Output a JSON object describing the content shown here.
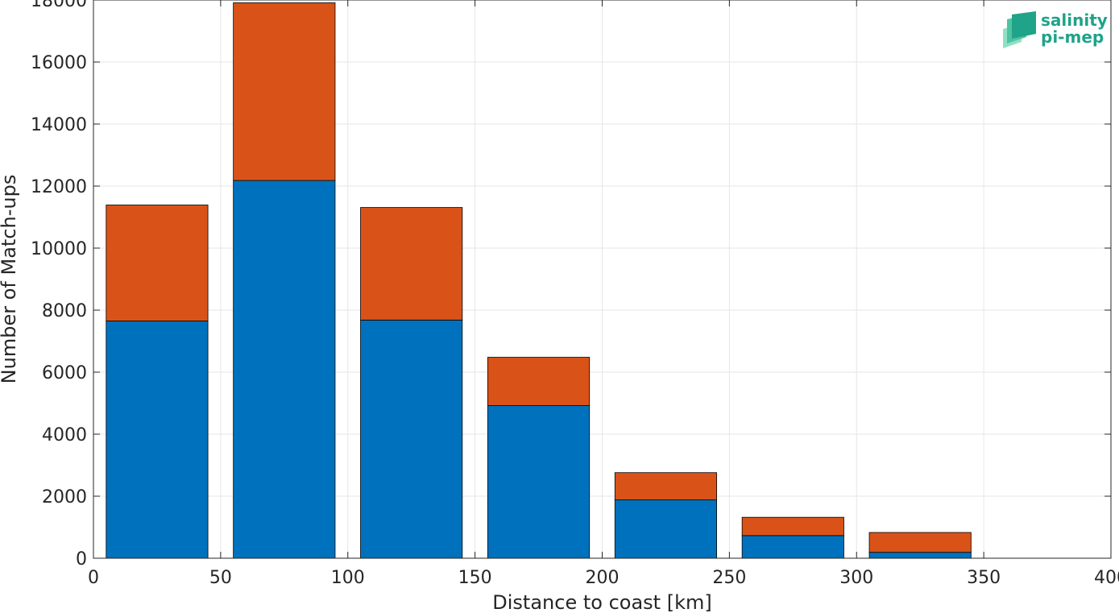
{
  "chart_data": {
    "type": "bar",
    "stacked": true,
    "x": [
      25,
      75,
      125,
      175,
      225,
      275,
      325
    ],
    "bar_width_data_units": 40,
    "series": [
      {
        "values": [
          7650,
          12180,
          7680,
          4920,
          1880,
          730,
          190
        ],
        "color": "#0072BD"
      },
      {
        "values": [
          3740,
          5730,
          3630,
          1560,
          880,
          590,
          640
        ],
        "color": "#D95319"
      }
    ],
    "xlabel": "Distance to coast [km]",
    "ylabel": "Number of Match-ups",
    "xlim": [
      0,
      400
    ],
    "ylim": [
      0,
      18000
    ],
    "xticks": [
      0,
      50,
      100,
      150,
      200,
      250,
      300,
      350,
      400
    ],
    "yticks": [
      0,
      2000,
      4000,
      6000,
      8000,
      10000,
      12000,
      14000,
      16000,
      18000
    ],
    "grid": true
  },
  "logo": {
    "line1": "salinity",
    "line2": "pi-mep",
    "icon": "layered-waves-icon"
  }
}
